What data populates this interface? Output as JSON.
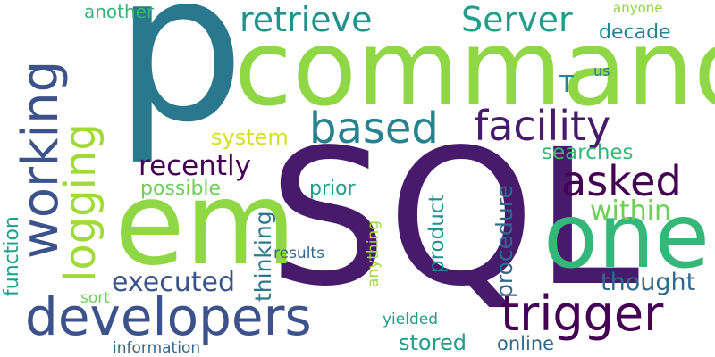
{
  "words": {
    "sql": {
      "text": "SQL",
      "color": "#481a6c"
    },
    "p": {
      "text": "p",
      "color": "#2a788e"
    },
    "command": {
      "text": "command",
      "color": "#8fd744"
    },
    "em": {
      "text": "em",
      "color": "#8fd744"
    },
    "one": {
      "text": "one",
      "color": "#35b779"
    },
    "developers": {
      "text": "developers",
      "color": "#3b528b"
    },
    "trigger": {
      "text": "trigger",
      "color": "#440154"
    },
    "working": {
      "text": "working",
      "color": "#3b528b"
    },
    "logging": {
      "text": "logging",
      "color": "#a0da39"
    },
    "retrieve": {
      "text": "retrieve",
      "color": "#21918c"
    },
    "server": {
      "text": "Server",
      "color": "#1f9e89"
    },
    "based": {
      "text": "based",
      "color": "#26828e"
    },
    "facility": {
      "text": "facility",
      "color": "#481a6c"
    },
    "asked": {
      "text": "asked",
      "color": "#440154"
    },
    "recently": {
      "text": "recently",
      "color": "#440154"
    },
    "executed": {
      "text": "executed",
      "color": "#3b528b"
    },
    "procedure": {
      "text": "procedure",
      "color": "#31688e"
    },
    "within": {
      "text": "within",
      "color": "#6ece58"
    },
    "thought": {
      "text": "thought",
      "color": "#31688e"
    },
    "system": {
      "text": "system",
      "color": "#d5e21a"
    },
    "searches": {
      "text": "searches",
      "color": "#35b779"
    },
    "possible": {
      "text": "possible",
      "color": "#6ece58"
    },
    "prior": {
      "text": "prior",
      "color": "#1f9e89"
    },
    "decade": {
      "text": "decade",
      "color": "#26828e"
    },
    "another": {
      "text": "another",
      "color": "#35b779"
    },
    "anyone": {
      "text": "anyone",
      "color": "#8fd744"
    },
    "us": {
      "text": "us",
      "color": "#2a788e"
    },
    "t": {
      "text": "T",
      "color": "#26828e"
    },
    "function": {
      "text": "function",
      "color": "#1f9e89"
    },
    "thinking": {
      "text": "thinking",
      "color": "#2a788e"
    },
    "product": {
      "text": "product",
      "color": "#21918c"
    },
    "anything": {
      "text": "anything",
      "color": "#a0da39"
    },
    "results": {
      "text": "results",
      "color": "#31688e"
    },
    "sort": {
      "text": "sort",
      "color": "#6ece58"
    },
    "stored": {
      "text": "stored",
      "color": "#1f9e89"
    },
    "online": {
      "text": "online",
      "color": "#31688e"
    },
    "yielded": {
      "text": "yielded",
      "color": "#1f9e89"
    },
    "information": {
      "text": "information",
      "color": "#31688e"
    }
  }
}
